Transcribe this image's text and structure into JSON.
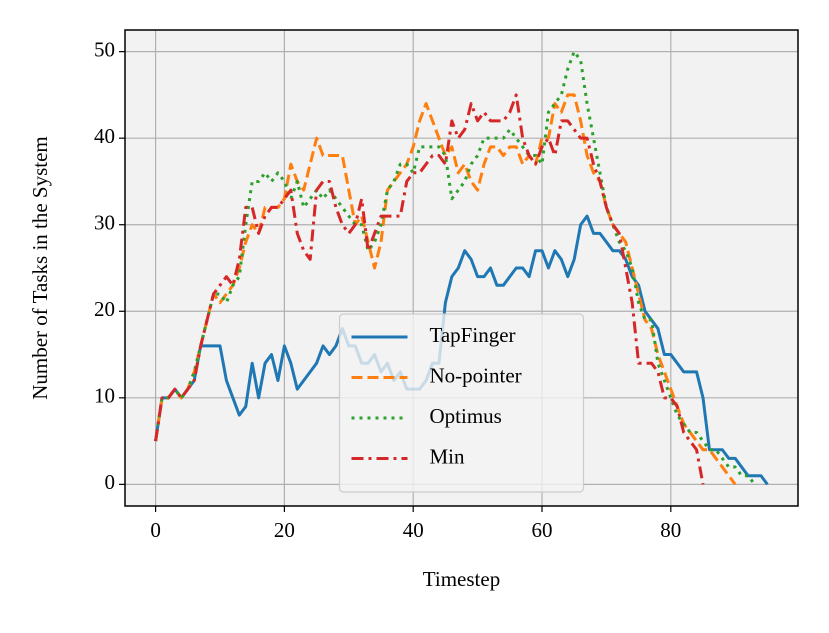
{
  "chart_data": {
    "type": "line",
    "x_label": "Timestep",
    "y_label": "Number of Tasks in the System",
    "x": [
      0,
      1,
      2,
      3,
      4,
      5,
      6,
      7,
      8,
      9,
      10,
      11,
      12,
      13,
      14,
      15,
      16,
      17,
      18,
      19,
      20,
      21,
      22,
      23,
      24,
      25,
      26,
      27,
      28,
      29,
      30,
      31,
      32,
      33,
      34,
      35,
      36,
      37,
      38,
      39,
      40,
      41,
      42,
      43,
      44,
      45,
      46,
      47,
      48,
      49,
      50,
      51,
      52,
      53,
      54,
      55,
      56,
      57,
      58,
      59,
      60,
      61,
      62,
      63,
      64,
      65,
      66,
      67,
      68,
      69,
      70,
      71,
      72,
      73,
      74,
      75,
      76,
      77,
      78,
      79,
      80,
      81,
      82,
      83,
      84,
      85,
      86,
      87,
      88,
      89,
      90,
      91,
      92,
      93,
      94,
      95
    ],
    "series": [
      {
        "name": "TapFinger",
        "color": "#1f77b4",
        "linestyle": "solid",
        "values": [
          5,
          10,
          10,
          11,
          10,
          11,
          12,
          16,
          16,
          16,
          16,
          12,
          10,
          8,
          9,
          14,
          10,
          14,
          15,
          12,
          16,
          14,
          11,
          12,
          13,
          14,
          16,
          15,
          16,
          18,
          16,
          16,
          14,
          14,
          15,
          13,
          14,
          12,
          13,
          11,
          11,
          11,
          12,
          14,
          14,
          21,
          24,
          25,
          27,
          26,
          24,
          24,
          25,
          23,
          23,
          24,
          25,
          25,
          24,
          27,
          27,
          25,
          27,
          26,
          24,
          26,
          30,
          31,
          29,
          29,
          28,
          27,
          27,
          26,
          24,
          23,
          20,
          19,
          18,
          15,
          15,
          14,
          13,
          13,
          13,
          10,
          4,
          4,
          4,
          3,
          3,
          2,
          1,
          1,
          1,
          0
        ]
      },
      {
        "name": "No-pointer",
        "color": "#ff7f0e",
        "linestyle": "dashed",
        "values": [
          5,
          10,
          10,
          11,
          10,
          11,
          13,
          16,
          19,
          22,
          21,
          22,
          23,
          25,
          28,
          30,
          29,
          32,
          32,
          32,
          33,
          37,
          35,
          34,
          37,
          40,
          38,
          38,
          38,
          38,
          34,
          30,
          31,
          28,
          25,
          28,
          34,
          35,
          36,
          37,
          39,
          42,
          44,
          42,
          40,
          38,
          39,
          36,
          37,
          35,
          34,
          37,
          39,
          39,
          38,
          39,
          39,
          37,
          38,
          37,
          40,
          40,
          44,
          43,
          45,
          45,
          42,
          38,
          36,
          35,
          32,
          30,
          29,
          28,
          25,
          22,
          19,
          18,
          15,
          13,
          11,
          9,
          7,
          6,
          5,
          4,
          4,
          3,
          2,
          1,
          0,
          null,
          null,
          null,
          null,
          null
        ]
      },
      {
        "name": "Optimus",
        "color": "#2ca02c",
        "linestyle": "dotted",
        "values": [
          5,
          10,
          10,
          11,
          10,
          11,
          13,
          16,
          19,
          22,
          22,
          21,
          23,
          24,
          30,
          35,
          35,
          36,
          35,
          36,
          35,
          33,
          35,
          32,
          33,
          34,
          33,
          34,
          33,
          32,
          31,
          30,
          30,
          27,
          28,
          30,
          34,
          35,
          37,
          37,
          36,
          39,
          39,
          39,
          39,
          38,
          33,
          34,
          35,
          37,
          38,
          40,
          40,
          40,
          40,
          41,
          40,
          39,
          38,
          38,
          37,
          43,
          44,
          45,
          48,
          50,
          49,
          44,
          40,
          36,
          32,
          30,
          28,
          27,
          25,
          21,
          19,
          19,
          14,
          12,
          10,
          8,
          7,
          6,
          6,
          5,
          4,
          4,
          3,
          2,
          2,
          1,
          1,
          0,
          null,
          null
        ]
      },
      {
        "name": "Min",
        "color": "#d62728",
        "linestyle": "dashdot",
        "values": [
          5,
          10,
          10,
          11,
          10,
          11,
          12,
          16,
          19,
          22,
          23,
          24,
          23,
          26,
          32,
          32,
          29,
          31,
          32,
          32,
          33,
          34,
          29,
          27,
          26,
          34,
          35,
          35,
          32,
          30,
          29,
          30,
          33,
          27,
          29,
          31,
          31,
          31,
          31,
          35,
          36,
          36,
          37,
          38,
          38,
          37,
          42,
          40,
          41,
          44,
          42,
          43,
          42,
          42,
          42,
          43,
          45,
          40,
          38,
          37,
          39,
          40,
          38,
          42,
          42,
          41,
          40,
          40,
          37,
          35,
          32,
          30,
          29,
          25,
          21,
          14,
          14,
          14,
          13,
          10,
          10,
          9,
          6,
          5,
          4,
          0,
          null,
          null,
          null,
          null,
          null,
          null,
          null,
          null,
          null,
          null
        ]
      }
    ],
    "xlim": [
      -4.75,
      99.75
    ],
    "ylim": [
      -2.5,
      52.5
    ],
    "xticks": [
      0,
      20,
      40,
      60,
      80
    ],
    "yticks": [
      0,
      10,
      20,
      30,
      40,
      50
    ],
    "grid": true,
    "legend": "lower center"
  }
}
